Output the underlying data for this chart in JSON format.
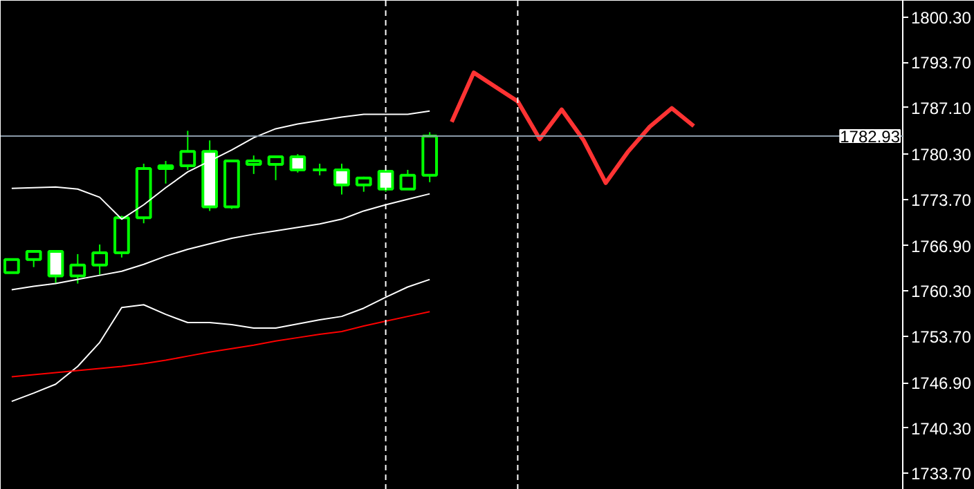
{
  "chart_data": {
    "type": "candlestick",
    "color": "#00ff00",
    "categories": [
      null,
      null,
      null,
      null,
      null,
      null,
      null,
      null,
      null,
      null,
      null,
      null,
      null,
      null,
      null,
      null,
      null,
      null,
      null,
      null,
      null,
      null,
      null,
      null,
      null,
      null,
      null,
      null,
      null,
      null,
      null,
      null,
      null,
      null,
      null,
      null,
      null,
      null,
      null,
      null,
      null
    ],
    "ohlc": [
      [
        1763.0,
        1764.9,
        1763.0,
        1764.9
      ],
      [
        1764.9,
        1766.1,
        1763.8,
        1766.1
      ],
      [
        1766.1,
        1766.1,
        1761.4,
        1762.5
      ],
      [
        1762.5,
        1765.7,
        1761.4,
        1764.1
      ],
      [
        1764.1,
        1767.1,
        1762.7,
        1765.9
      ],
      [
        1765.9,
        1771.3,
        1765.2,
        1771.0
      ],
      [
        1771.0,
        1778.9,
        1770.2,
        1778.2
      ],
      [
        1778.2,
        1779.3,
        1776.0,
        1778.6
      ],
      [
        1778.6,
        1783.7,
        1778.0,
        1780.7
      ],
      [
        1780.7,
        1782.3,
        1772.0,
        1772.6
      ],
      [
        1772.6,
        1779.3,
        1772.3,
        1779.3
      ],
      [
        1778.8,
        1780.1,
        1777.4,
        1779.3
      ],
      [
        1778.8,
        1780.1,
        1776.5,
        1779.9
      ],
      [
        1779.9,
        1780.3,
        1777.6,
        1778.0
      ],
      [
        1778.0,
        1778.9,
        1777.2,
        1778.0
      ],
      [
        1778.0,
        1778.9,
        1774.4,
        1775.8
      ],
      [
        1775.8,
        1777.0,
        1774.8,
        1776.8
      ],
      [
        1777.8,
        1777.8,
        1774.8,
        1775.2
      ],
      [
        1775.2,
        1778.0,
        1775.2,
        1777.2
      ],
      [
        1777.2,
        1783.5,
        1776.2,
        1782.93
      ],
      null,
      null,
      null,
      null,
      null,
      null,
      null,
      null,
      null,
      null,
      null,
      null,
      null,
      null,
      null,
      null,
      null,
      null,
      null,
      null,
      null
    ],
    "series": [
      {
        "type": "line",
        "color": "#ffffff",
        "values": [
          1775.3,
          1775.4,
          1775.5,
          1775.2,
          1774.0,
          1770.8,
          1772.9,
          1775.4,
          1777.7,
          1779.3,
          1780.9,
          1782.7,
          1784.0,
          1784.7,
          1785.2,
          1785.7,
          1786.1,
          1786.1,
          1786.1,
          1786.6,
          null,
          null,
          null,
          null,
          null,
          null,
          null,
          null,
          null,
          null,
          null,
          null,
          null,
          null,
          null,
          null,
          null,
          null,
          null,
          null,
          null
        ]
      },
      {
        "type": "line",
        "color": "#ffffff",
        "values": [
          1760.5,
          1761.0,
          1761.4,
          1762.0,
          1762.6,
          1763.2,
          1764.2,
          1765.4,
          1766.4,
          1767.2,
          1768.0,
          1768.6,
          1769.1,
          1769.6,
          1770.1,
          1770.8,
          1772.0,
          1772.9,
          1773.7,
          1774.5,
          null,
          null,
          null,
          null,
          null,
          null,
          null,
          null,
          null,
          null,
          null,
          null,
          null,
          null,
          null,
          null,
          null,
          null,
          null,
          null,
          null
        ]
      },
      {
        "type": "line",
        "color": "#ffffff",
        "values": [
          1744.2,
          1745.4,
          1746.7,
          1749.3,
          1752.8,
          1757.9,
          1758.3,
          1756.9,
          1755.7,
          1755.7,
          1755.4,
          1754.9,
          1754.9,
          1755.5,
          1756.1,
          1756.6,
          1757.8,
          1759.4,
          1760.9,
          1762.0,
          null,
          null,
          null,
          null,
          null,
          null,
          null,
          null,
          null,
          null,
          null,
          null,
          null,
          null,
          null,
          null,
          null,
          null,
          null,
          null,
          null
        ]
      },
      {
        "type": "line",
        "color": "#ff0000",
        "values": [
          1747.8,
          1748.1,
          1748.4,
          1748.7,
          1749.0,
          1749.3,
          1749.7,
          1750.2,
          1750.8,
          1751.4,
          1751.9,
          1752.4,
          1753.0,
          1753.5,
          1754.0,
          1754.4,
          1755.2,
          1755.9,
          1756.6,
          1757.3,
          null,
          null,
          null,
          null,
          null,
          null,
          null,
          null,
          null,
          null,
          null,
          null,
          null,
          null,
          null,
          null,
          null,
          null,
          null,
          null,
          null
        ]
      },
      {
        "type": "line",
        "color": "#ff3333",
        "values": [
          null,
          null,
          null,
          null,
          null,
          null,
          null,
          null,
          null,
          null,
          null,
          null,
          null,
          null,
          null,
          null,
          null,
          null,
          null,
          null,
          1785.0,
          1792.2,
          1790.1,
          1788.0,
          1782.5,
          1786.8,
          1782.3,
          1776.1,
          1780.6,
          1784.3,
          1787.0,
          1784.4,
          null,
          null,
          null,
          null,
          null,
          null,
          null,
          null,
          null
        ]
      }
    ],
    "ylim": [
      1731.3,
      1802.7
    ],
    "yticks": [
      {
        "value": 1800.3,
        "label": "1800.30"
      },
      {
        "value": 1793.7,
        "label": "1793.70"
      },
      {
        "value": 1787.1,
        "label": "1787.10"
      },
      {
        "value": 1780.3,
        "label": "1780.30"
      },
      {
        "value": 1773.7,
        "label": "1773.70"
      },
      {
        "value": 1766.9,
        "label": "1766.90"
      },
      {
        "value": 1760.3,
        "label": "1760.30"
      },
      {
        "value": 1753.7,
        "label": "1753.70"
      },
      {
        "value": 1746.9,
        "label": "1746.90"
      },
      {
        "value": 1740.3,
        "label": "1740.30"
      },
      {
        "value": 1733.7,
        "label": "1733.70"
      }
    ],
    "tick_labels": "y",
    "grid": false,
    "ref_lines": [
      {
        "axis": "y",
        "value": 1782.93,
        "label": "1782.93",
        "color": "#8a9aa9",
        "line_style": "solid"
      }
    ]
  }
}
